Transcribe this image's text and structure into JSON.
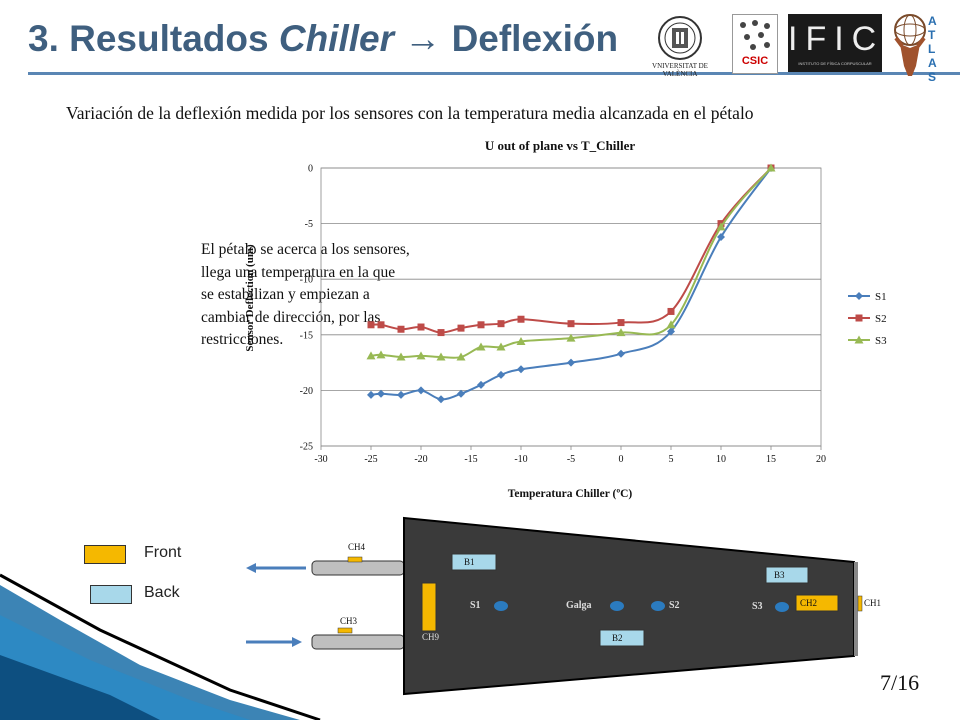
{
  "slide": {
    "title_prefix": "3. Resultados",
    "title_italic": "Chiller",
    "title_arrow": "→",
    "title_suffix": "Deflexión",
    "subtitle": "Variación de la deflexión medida por los sensores con la temperatura media alcanzada en el pétalo",
    "side_text": "El pétalo se acerca a los sensores, llega una temperatura en la que se estabilizan y empiezan a cambiar de dirección, por las restricciones.",
    "page_number": "7/16",
    "logos": {
      "uv": "VNIVERSITAT DE VALÈNCIA",
      "csic": "CSIC",
      "ific": "IFIC",
      "ific_sub": "INSTITUTO DE FÍSICA CORPUSCULAR",
      "atlas": "ATLAS"
    }
  },
  "chart_data": {
    "type": "line",
    "title": "U out of plane vs T_Chiller",
    "xlabel": "Temperatura Chiller (ºC)",
    "ylabel": "Sensor Deflection (um)",
    "xlim": [
      -30,
      20
    ],
    "ylim": [
      -25,
      0
    ],
    "xticks": [
      "-30",
      "-25",
      "-20",
      "-15",
      "-10",
      "-5",
      "0",
      "5",
      "10",
      "15",
      "20"
    ],
    "yticks": [
      "0",
      "-5",
      "-10",
      "-15",
      "-20",
      "-25"
    ],
    "grid": "horizontal",
    "legend_position": "right",
    "series": [
      {
        "name": "S1",
        "color": "#4a7ebb",
        "marker": "diamond",
        "points": [
          [
            -25,
            -20.4
          ],
          [
            -24,
            -20.3
          ],
          [
            -22,
            -20.4
          ],
          [
            -20,
            -20.0
          ],
          [
            -18,
            -20.8
          ],
          [
            -16,
            -20.3
          ],
          [
            -14,
            -19.5
          ],
          [
            -12,
            -18.6
          ],
          [
            -10,
            -18.1
          ],
          [
            -5,
            -17.5
          ],
          [
            0,
            -16.7
          ],
          [
            5,
            -14.7
          ],
          [
            10,
            -6.2
          ],
          [
            15,
            0
          ]
        ]
      },
      {
        "name": "S2",
        "color": "#be4b48",
        "marker": "square",
        "points": [
          [
            -25,
            -14.1
          ],
          [
            -24,
            -14.1
          ],
          [
            -22,
            -14.5
          ],
          [
            -20,
            -14.3
          ],
          [
            -18,
            -14.8
          ],
          [
            -16,
            -14.4
          ],
          [
            -14,
            -14.1
          ],
          [
            -12,
            -14.0
          ],
          [
            -10,
            -13.6
          ],
          [
            -5,
            -14.0
          ],
          [
            0,
            -13.9
          ],
          [
            5,
            -12.9
          ],
          [
            10,
            -5.0
          ],
          [
            15,
            0
          ]
        ]
      },
      {
        "name": "S3",
        "color": "#98b954",
        "marker": "triangle",
        "points": [
          [
            -25,
            -16.9
          ],
          [
            -24,
            -16.8
          ],
          [
            -22,
            -17.0
          ],
          [
            -20,
            -16.9
          ],
          [
            -18,
            -17.0
          ],
          [
            -16,
            -17.0
          ],
          [
            -14,
            -16.1
          ],
          [
            -12,
            -16.1
          ],
          [
            -10,
            -15.6
          ],
          [
            -5,
            -15.3
          ],
          [
            0,
            -14.8
          ],
          [
            5,
            -14.1
          ],
          [
            10,
            -5.3
          ],
          [
            15,
            0
          ]
        ]
      }
    ]
  },
  "diagram": {
    "legend": [
      {
        "label": "Front",
        "color": "#f5b800"
      },
      {
        "label": "Back",
        "color": "#a8d8ea"
      }
    ],
    "labels": {
      "ch1": "CH1",
      "ch2": "CH2",
      "ch3": "CH3",
      "ch4": "CH4",
      "ch9": "CH9",
      "b1": "B1",
      "b2": "B2",
      "b3": "B3",
      "s1": "S1",
      "s2": "S2",
      "s3": "S3",
      "galga": "Galga"
    }
  }
}
